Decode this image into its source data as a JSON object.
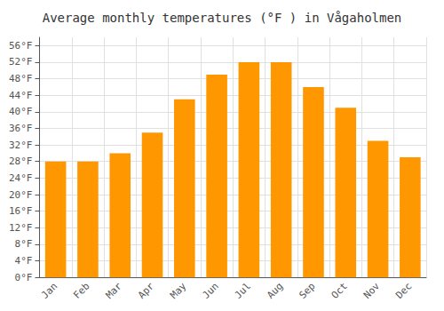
{
  "chart_data": {
    "type": "bar",
    "title": "Average monthly temperatures (°F ) in Vågaholmen",
    "categories": [
      "Jan",
      "Feb",
      "Mar",
      "Apr",
      "May",
      "Jun",
      "Jul",
      "Aug",
      "Sep",
      "Oct",
      "Nov",
      "Dec"
    ],
    "values": [
      28,
      28,
      30,
      35,
      43,
      49,
      52,
      52,
      46,
      41,
      33,
      29
    ],
    "color": "#FF9800",
    "ylim": [
      0,
      58
    ],
    "yticks": [
      {
        "value": 0,
        "label": "0°F"
      },
      {
        "value": 4,
        "label": "4°F"
      },
      {
        "value": 8,
        "label": "8°F"
      },
      {
        "value": 12,
        "label": "12°F"
      },
      {
        "value": 16,
        "label": "16°F"
      },
      {
        "value": 20,
        "label": "20°F"
      },
      {
        "value": 24,
        "label": "24°F"
      },
      {
        "value": 28,
        "label": "28°F"
      },
      {
        "value": 32,
        "label": "32°F"
      },
      {
        "value": 36,
        "label": "36°F"
      },
      {
        "value": 40,
        "label": "40°F"
      },
      {
        "value": 44,
        "label": "44°F"
      },
      {
        "value": 48,
        "label": "48°F"
      },
      {
        "value": 52,
        "label": "52°F"
      },
      {
        "value": 56,
        "label": "56°F"
      }
    ],
    "grid": true
  }
}
